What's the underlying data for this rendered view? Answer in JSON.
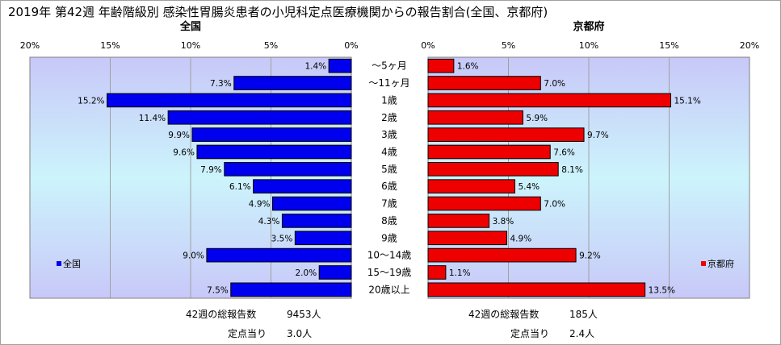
{
  "title": "2019年 第42週 年齢階級別 感染性胃腸炎患者の小児科定点医療機関からの報告割合(全国、京都府)",
  "chart_data": [
    {
      "type": "bar",
      "orientation": "horizontal",
      "direction": "right-to-left",
      "title": "全国",
      "xlim": [
        0,
        20
      ],
      "tick_labels": [
        "20%",
        "15%",
        "10%",
        "5%",
        "0%"
      ],
      "legend": "全国",
      "legend_position": "bottom-left",
      "color": "#0000ee",
      "categories": [
        "～5ヶ月",
        "～11ヶ月",
        "1歳",
        "2歳",
        "3歳",
        "4歳",
        "5歳",
        "6歳",
        "7歳",
        "8歳",
        "9歳",
        "10～14歳",
        "15～19歳",
        "20歳以上"
      ],
      "values": [
        1.4,
        7.3,
        15.2,
        11.4,
        9.9,
        9.6,
        7.9,
        6.1,
        4.9,
        4.3,
        3.5,
        9.0,
        2.0,
        7.5
      ],
      "value_labels": [
        "1.4%",
        "7.3%",
        "15.2%",
        "11.4%",
        "9.9%",
        "9.6%",
        "7.9%",
        "6.1%",
        "4.9%",
        "4.3%",
        "3.5%",
        "9.0%",
        "2.0%",
        "7.5%"
      ],
      "summary": {
        "total_label": "42週の総報告数",
        "total_value": "9453人",
        "per_label": "定点当り",
        "per_value": "3.0人"
      }
    },
    {
      "type": "bar",
      "orientation": "horizontal",
      "direction": "left-to-right",
      "title": "京都府",
      "xlim": [
        0,
        20
      ],
      "tick_labels": [
        "0%",
        "5%",
        "10%",
        "15%",
        "20%"
      ],
      "legend": "京都府",
      "legend_position": "bottom-right",
      "color": "#ee0000",
      "categories": [
        "～5ヶ月",
        "～11ヶ月",
        "1歳",
        "2歳",
        "3歳",
        "4歳",
        "5歳",
        "6歳",
        "7歳",
        "8歳",
        "9歳",
        "10～14歳",
        "15～19歳",
        "20歳以上"
      ],
      "values": [
        1.6,
        7.0,
        15.1,
        5.9,
        9.7,
        7.6,
        8.1,
        5.4,
        7.0,
        3.8,
        4.9,
        9.2,
        1.1,
        13.5
      ],
      "value_labels": [
        "1.6%",
        "7.0%",
        "15.1%",
        "5.9%",
        "9.7%",
        "7.6%",
        "8.1%",
        "5.4%",
        "7.0%",
        "3.8%",
        "4.9%",
        "9.2%",
        "1.1%",
        "13.5%"
      ],
      "summary": {
        "total_label": "42週の総報告数",
        "total_value": "185人",
        "per_label": "定点当り",
        "per_value": "2.4人"
      }
    }
  ]
}
